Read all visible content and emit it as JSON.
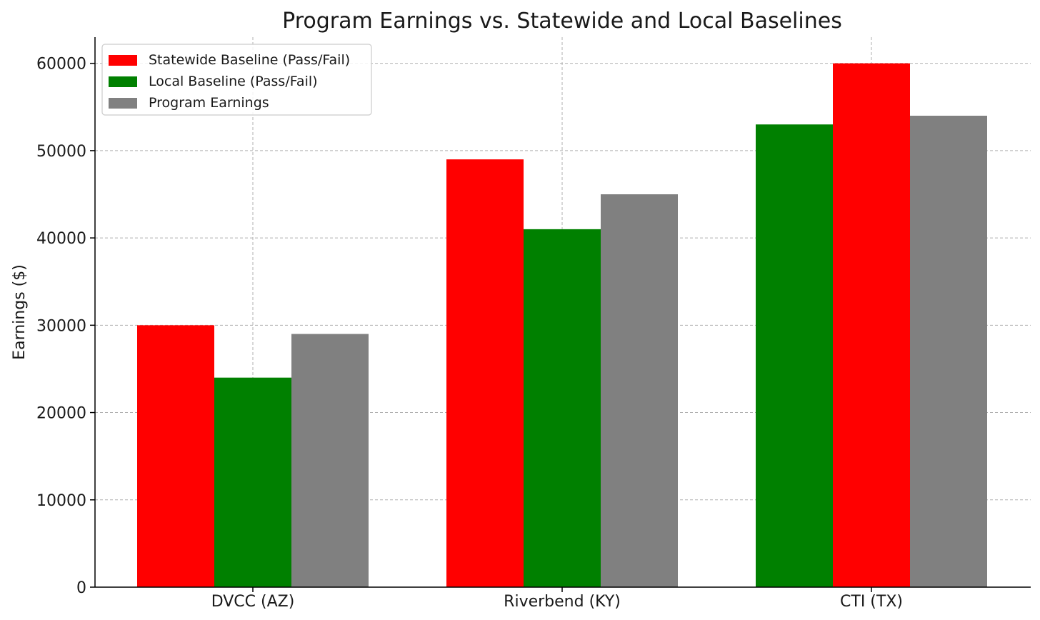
{
  "chart_data": {
    "type": "bar",
    "title": "Program Earnings vs. Statewide and Local Baselines",
    "xlabel": "",
    "ylabel": "Earnings ($)",
    "categories": [
      "DVCC (AZ)",
      "Riverbend (KY)",
      "CTI (TX)"
    ],
    "ylim": [
      0,
      63000
    ],
    "yticks": [
      0,
      10000,
      20000,
      30000,
      40000,
      50000,
      60000
    ],
    "grid": true,
    "legend_position": "top-left",
    "legend": [
      {
        "label": "Statewide Baseline (Pass/Fail)",
        "color": "#ff0000"
      },
      {
        "label": "Local Baseline (Pass/Fail)",
        "color": "#008000"
      },
      {
        "label": "Program Earnings",
        "color": "#808080"
      }
    ],
    "series": [
      {
        "name": "Statewide Baseline (Pass/Fail)",
        "values": [
          30000,
          49000,
          60000
        ],
        "colors": [
          "#ff0000",
          "#ff0000",
          "#ff0000"
        ]
      },
      {
        "name": "Local Baseline (Pass/Fail)",
        "values": [
          24000,
          41000,
          53000
        ],
        "colors": [
          "#008000",
          "#008000",
          "#008000"
        ]
      },
      {
        "name": "Program Earnings",
        "values": [
          29000,
          45000,
          54000
        ],
        "colors": [
          "#808080",
          "#808080",
          "#808080"
        ]
      }
    ],
    "bar_order": [
      [
        "Statewide Baseline (Pass/Fail)",
        "Local Baseline (Pass/Fail)",
        "Program Earnings"
      ],
      [
        "Statewide Baseline (Pass/Fail)",
        "Local Baseline (Pass/Fail)",
        "Program Earnings"
      ],
      [
        "Local Baseline (Pass/Fail)",
        "Statewide Baseline (Pass/Fail)",
        "Program Earnings"
      ]
    ]
  }
}
